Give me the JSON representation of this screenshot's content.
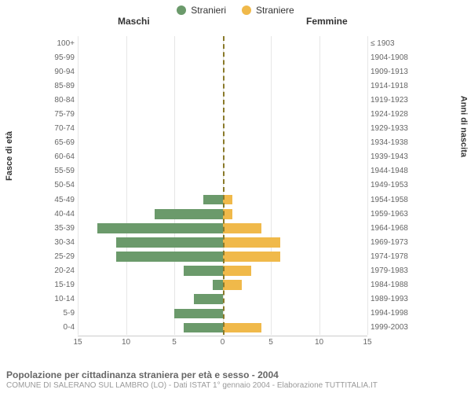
{
  "legend": {
    "male": {
      "label": "Stranieri",
      "color": "#6b9a6b"
    },
    "female": {
      "label": "Straniere",
      "color": "#f0b94a"
    }
  },
  "column_titles": {
    "left": "Maschi",
    "right": "Femmine"
  },
  "axis_labels": {
    "left": "Fasce di età",
    "right": "Anni di nascita"
  },
  "x_axis": {
    "max": 15,
    "ticks_left": [
      15,
      10,
      5,
      0
    ],
    "ticks_right": [
      5,
      10,
      15
    ]
  },
  "style": {
    "background": "#ffffff",
    "grid_color": "#e6e6e6",
    "axis_text_color": "#666666",
    "center_line_color": "#8a7a2a",
    "tick_fontsize": 10,
    "label_fontsize": 11
  },
  "rows": [
    {
      "age": "100+",
      "birth": "≤ 1903",
      "m": 0,
      "f": 0
    },
    {
      "age": "95-99",
      "birth": "1904-1908",
      "m": 0,
      "f": 0
    },
    {
      "age": "90-94",
      "birth": "1909-1913",
      "m": 0,
      "f": 0
    },
    {
      "age": "85-89",
      "birth": "1914-1918",
      "m": 0,
      "f": 0
    },
    {
      "age": "80-84",
      "birth": "1919-1923",
      "m": 0,
      "f": 0
    },
    {
      "age": "75-79",
      "birth": "1924-1928",
      "m": 0,
      "f": 0
    },
    {
      "age": "70-74",
      "birth": "1929-1933",
      "m": 0,
      "f": 0
    },
    {
      "age": "65-69",
      "birth": "1934-1938",
      "m": 0,
      "f": 0
    },
    {
      "age": "60-64",
      "birth": "1939-1943",
      "m": 0,
      "f": 0
    },
    {
      "age": "55-59",
      "birth": "1944-1948",
      "m": 0,
      "f": 0
    },
    {
      "age": "50-54",
      "birth": "1949-1953",
      "m": 0,
      "f": 0
    },
    {
      "age": "45-49",
      "birth": "1954-1958",
      "m": 2,
      "f": 1
    },
    {
      "age": "40-44",
      "birth": "1959-1963",
      "m": 7,
      "f": 1
    },
    {
      "age": "35-39",
      "birth": "1964-1968",
      "m": 13,
      "f": 4
    },
    {
      "age": "30-34",
      "birth": "1969-1973",
      "m": 11,
      "f": 6
    },
    {
      "age": "25-29",
      "birth": "1974-1978",
      "m": 11,
      "f": 6
    },
    {
      "age": "20-24",
      "birth": "1979-1983",
      "m": 4,
      "f": 3
    },
    {
      "age": "15-19",
      "birth": "1984-1988",
      "m": 1,
      "f": 2
    },
    {
      "age": "10-14",
      "birth": "1989-1993",
      "m": 3,
      "f": 0
    },
    {
      "age": "5-9",
      "birth": "1994-1998",
      "m": 5,
      "f": 0
    },
    {
      "age": "0-4",
      "birth": "1999-2003",
      "m": 4,
      "f": 4
    }
  ],
  "footer": {
    "line1": "Popolazione per cittadinanza straniera per età e sesso - 2004",
    "line2": "COMUNE DI SALERANO SUL LAMBRO (LO) - Dati ISTAT 1° gennaio 2004 - Elaborazione TUTTITALIA.IT"
  }
}
